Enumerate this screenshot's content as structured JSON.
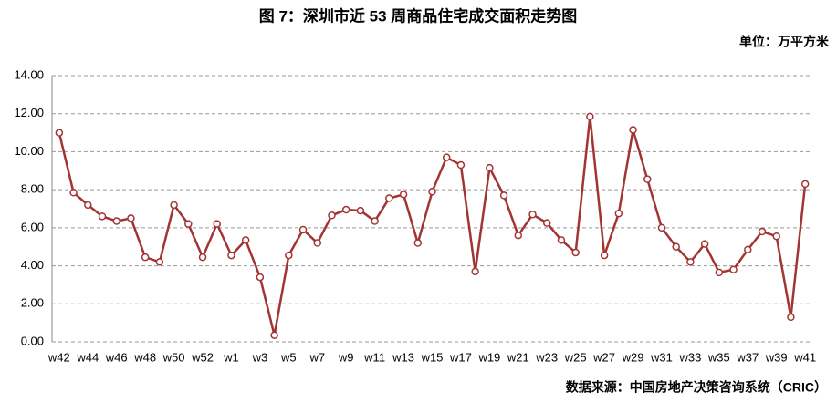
{
  "chart_data": {
    "type": "line",
    "title": "图 7：深圳市近 53 周商品住宅成交面积走势图",
    "unit": "单位：万平方米",
    "source": "数据来源：中国房地产决策咨询系统（CRIC）",
    "categories": [
      "w42",
      null,
      "w44",
      null,
      "w46",
      null,
      "w48",
      null,
      "w50",
      null,
      "w52",
      null,
      "w1",
      null,
      "w3",
      null,
      "w5",
      null,
      "w7",
      null,
      "w9",
      null,
      "w11",
      null,
      "w13",
      null,
      "w15",
      null,
      "w17",
      null,
      "w19",
      null,
      "w21",
      null,
      "w23",
      null,
      "w25",
      null,
      "w27",
      null,
      "w29",
      null,
      "w31",
      null,
      "w33",
      null,
      "w35",
      null,
      "w37",
      null,
      "w39",
      null,
      "w41"
    ],
    "values": [
      11.0,
      7.85,
      7.2,
      6.6,
      6.35,
      6.5,
      4.45,
      4.2,
      7.2,
      6.2,
      4.45,
      6.2,
      4.55,
      5.35,
      3.4,
      0.35,
      4.55,
      5.9,
      5.2,
      6.65,
      6.95,
      6.9,
      6.35,
      7.55,
      7.75,
      5.2,
      7.9,
      9.7,
      9.3,
      3.7,
      9.15,
      7.7,
      5.6,
      6.7,
      6.25,
      5.35,
      4.7,
      11.85,
      4.55,
      6.75,
      11.15,
      8.55,
      6.0,
      5.0,
      4.2,
      5.15,
      3.65,
      3.8,
      4.85,
      5.8,
      5.55,
      1.3,
      8.3
    ],
    "color": "#a33434",
    "ylim": [
      0,
      14
    ],
    "yticks": [
      {
        "value": 0,
        "label": "0.00"
      },
      {
        "value": 2,
        "label": "2.00"
      },
      {
        "value": 4,
        "label": "4.00"
      },
      {
        "value": 6,
        "label": "6.00"
      },
      {
        "value": 8,
        "label": "8.00"
      },
      {
        "value": 10,
        "label": "10.00"
      },
      {
        "value": 12,
        "label": "12.00"
      },
      {
        "value": 14,
        "label": "14.00"
      }
    ],
    "grid": true
  }
}
